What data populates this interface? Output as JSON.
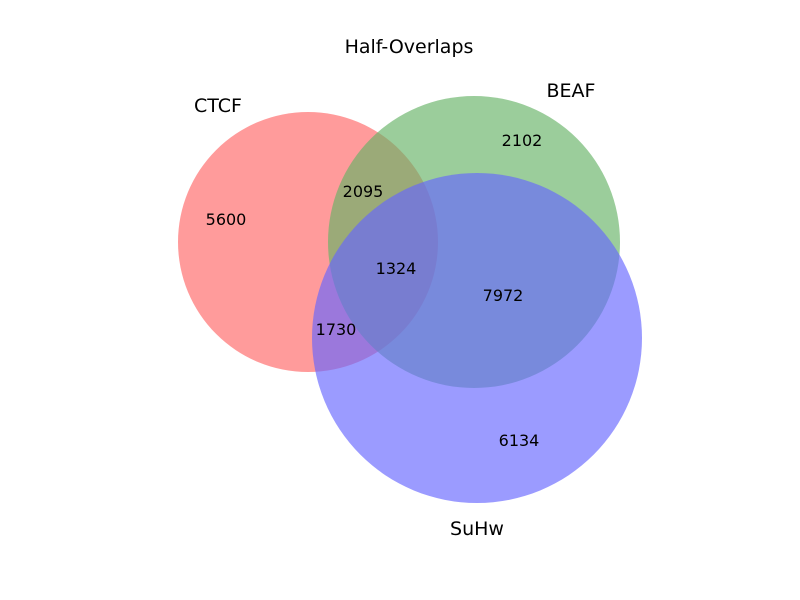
{
  "title": "Half-Overlaps",
  "sets": [
    {
      "key": "ctcf",
      "label": "CTCF",
      "color": "#ff6666"
    },
    {
      "key": "beaf",
      "label": "BEAF",
      "color": "#66b266"
    },
    {
      "key": "suhw",
      "label": "SuHw",
      "color": "#6666ff"
    }
  ],
  "regions": {
    "ctcf_only": "5600",
    "beaf_only": "2102",
    "suhw_only": "6134",
    "ctcf_beaf": "2095",
    "ctcf_suhw": "1730",
    "beaf_suhw": "7972",
    "all_three": "1324"
  }
}
